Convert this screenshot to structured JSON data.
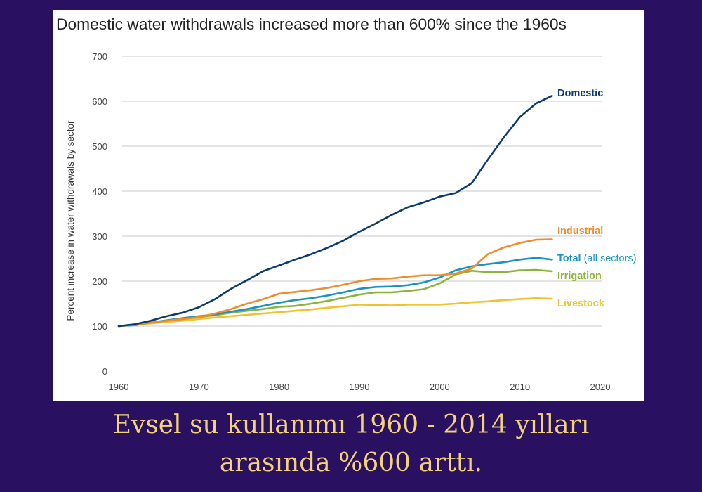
{
  "chart_data": {
    "type": "line",
    "title": "Domestic water withdrawals increased more than 600% since the 1960s",
    "xlabel": "",
    "ylabel": "Percent increase in water withdrawals by sector",
    "xlim": [
      1960,
      2020
    ],
    "ylim": [
      0,
      700
    ],
    "xticks": [
      1960,
      1970,
      1980,
      1990,
      2000,
      2010,
      2020
    ],
    "yticks": [
      0,
      100,
      200,
      300,
      400,
      500,
      600,
      700
    ],
    "grid": "horizontal",
    "legend": "direct labels at right end of lines",
    "series": [
      {
        "name": "Domestic",
        "label": "Domestic",
        "label_suffix": "",
        "color": "#0b3b6e",
        "x": [
          1960,
          1962,
          1964,
          1966,
          1968,
          1970,
          1972,
          1974,
          1976,
          1978,
          1980,
          1982,
          1984,
          1986,
          1988,
          1990,
          1992,
          1994,
          1996,
          1998,
          2000,
          2002,
          2004,
          2006,
          2008,
          2010,
          2012,
          2014
        ],
        "y": [
          100,
          104,
          112,
          122,
          130,
          142,
          160,
          183,
          202,
          222,
          235,
          248,
          260,
          274,
          290,
          310,
          328,
          347,
          364,
          375,
          388,
          396,
          418,
          470,
          520,
          565,
          595,
          612
        ]
      },
      {
        "name": "Industrial",
        "label": "Industrial",
        "label_suffix": "",
        "color": "#f08c2a",
        "x": [
          1960,
          1962,
          1964,
          1966,
          1968,
          1970,
          1972,
          1974,
          1976,
          1978,
          1980,
          1982,
          1984,
          1986,
          1988,
          1990,
          1992,
          1994,
          1996,
          1998,
          2000,
          2002,
          2004,
          2006,
          2008,
          2010,
          2012,
          2014
        ],
        "y": [
          100,
          103,
          108,
          112,
          116,
          120,
          128,
          138,
          150,
          160,
          172,
          176,
          180,
          185,
          192,
          200,
          205,
          206,
          210,
          213,
          213,
          217,
          228,
          260,
          275,
          285,
          292,
          293
        ]
      },
      {
        "name": "Total",
        "label": "Total",
        "label_suffix": " (all sectors)",
        "color": "#1a92c4",
        "x": [
          1960,
          1962,
          1964,
          1966,
          1968,
          1970,
          1972,
          1974,
          1976,
          1978,
          1980,
          1982,
          1984,
          1986,
          1988,
          1990,
          1992,
          1994,
          1996,
          1998,
          2000,
          2002,
          2004,
          2006,
          2008,
          2010,
          2012,
          2014
        ],
        "y": [
          100,
          102,
          108,
          113,
          118,
          122,
          126,
          132,
          138,
          145,
          152,
          158,
          162,
          168,
          175,
          183,
          187,
          188,
          191,
          197,
          208,
          224,
          233,
          238,
          242,
          248,
          252,
          248
        ]
      },
      {
        "name": "Irrigation",
        "label": "Irrigation",
        "label_suffix": "",
        "color": "#8db43a",
        "x": [
          1960,
          1962,
          1964,
          1966,
          1968,
          1970,
          1972,
          1974,
          1976,
          1978,
          1980,
          1982,
          1984,
          1986,
          1988,
          1990,
          1992,
          1994,
          1996,
          1998,
          2000,
          2002,
          2004,
          2006,
          2008,
          2010,
          2012,
          2014
        ],
        "y": [
          100,
          104,
          108,
          112,
          116,
          120,
          124,
          130,
          134,
          138,
          143,
          145,
          150,
          156,
          163,
          170,
          175,
          175,
          178,
          182,
          195,
          215,
          223,
          220,
          220,
          224,
          225,
          222
        ]
      },
      {
        "name": "Livestock",
        "label": "Livestock",
        "label_suffix": "",
        "color": "#f2c12e",
        "x": [
          1960,
          1962,
          1964,
          1966,
          1968,
          1970,
          1972,
          1974,
          1976,
          1978,
          1980,
          1982,
          1984,
          1986,
          1988,
          1990,
          1992,
          1994,
          1996,
          1998,
          2000,
          2002,
          2004,
          2006,
          2008,
          2010,
          2012,
          2014
        ],
        "y": [
          100,
          103,
          106,
          109,
          112,
          116,
          119,
          122,
          125,
          128,
          131,
          134,
          137,
          141,
          144,
          148,
          147,
          146,
          148,
          148,
          148,
          150,
          153,
          155,
          158,
          160,
          162,
          161
        ]
      }
    ]
  },
  "caption": {
    "line1": "Evsel su kullanımı 1960 - 2014 yılları",
    "line2": "arasında %600 arttı."
  }
}
